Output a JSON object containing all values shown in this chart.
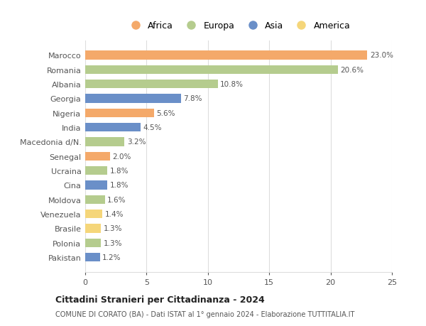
{
  "countries": [
    "Marocco",
    "Romania",
    "Albania",
    "Georgia",
    "Nigeria",
    "India",
    "Macedonia d/N.",
    "Senegal",
    "Ucraina",
    "Cina",
    "Moldova",
    "Venezuela",
    "Brasile",
    "Polonia",
    "Pakistan"
  ],
  "values": [
    23.0,
    20.6,
    10.8,
    7.8,
    5.6,
    4.5,
    3.2,
    2.0,
    1.8,
    1.8,
    1.6,
    1.4,
    1.3,
    1.3,
    1.2
  ],
  "continents": [
    "Africa",
    "Europa",
    "Europa",
    "Asia",
    "Africa",
    "Asia",
    "Europa",
    "Africa",
    "Europa",
    "Asia",
    "Europa",
    "America",
    "America",
    "Europa",
    "Asia"
  ],
  "colors": {
    "Africa": "#F4A96A",
    "Europa": "#B5CC8E",
    "Asia": "#6A8FC8",
    "America": "#F5D67A"
  },
  "legend_order": [
    "Africa",
    "Europa",
    "Asia",
    "America"
  ],
  "title": "Cittadini Stranieri per Cittadinanza - 2024",
  "subtitle": "COMUNE DI CORATO (BA) - Dati ISTAT al 1° gennaio 2024 - Elaborazione TUTTITALIA.IT",
  "xlim": [
    0,
    25
  ],
  "xticks": [
    0,
    5,
    10,
    15,
    20,
    25
  ],
  "background_color": "#ffffff",
  "grid_color": "#dddddd",
  "bar_height": 0.6
}
